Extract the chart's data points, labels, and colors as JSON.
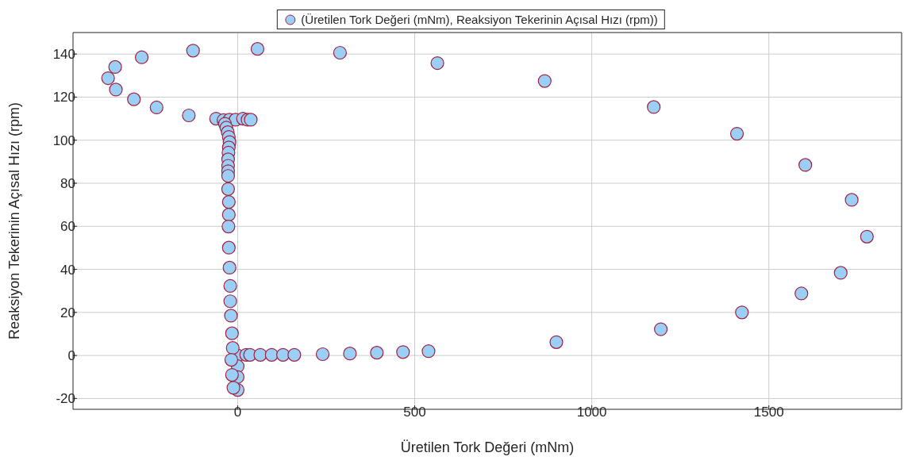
{
  "chart_data": {
    "type": "scatter",
    "xlabel": "Üretilen Tork Değeri (mNm)",
    "ylabel": "Reaksiyon Tekerinin Açısal Hızı (rpm)",
    "xlim": [
      -465,
      1875
    ],
    "ylim": [
      -25,
      150
    ],
    "xticks": [
      0,
      500,
      1000,
      1500
    ],
    "yticks": [
      -20,
      0,
      20,
      40,
      60,
      80,
      100,
      120,
      140
    ],
    "grid": true,
    "legend": "top",
    "marker": "circle",
    "series": [
      {
        "name": "(Üretilen Tork Değeri (mNm), Reaksiyon Tekerinin Açısal Hızı (rpm))",
        "color": "#9ccff5",
        "x": [
          0,
          0,
          0,
          0,
          24,
          35,
          64,
          96,
          128,
          160,
          240,
          317,
          393,
          467,
          539,
          900,
          1195,
          1424,
          1592,
          1703,
          1777,
          1734,
          1603,
          1410,
          1175,
          867,
          564,
          289,
          56,
          -126,
          -271,
          -346,
          -366,
          -344,
          -293,
          -229,
          -138,
          -61,
          -40,
          -23,
          -6,
          15,
          28,
          37,
          -36,
          -32,
          -28,
          -25,
          -23,
          -25,
          -26,
          -27,
          -27,
          -27,
          -27,
          -27,
          -25,
          -25,
          -26,
          -25,
          -23,
          -21,
          -21,
          -19,
          -16,
          -14,
          -18,
          -16,
          -12
        ],
        "values": [
          0,
          -5,
          -10,
          -16,
          0.3,
          0.3,
          0.3,
          0.3,
          0.3,
          0.3,
          0.6,
          0.9,
          1.3,
          1.6,
          2,
          6.2,
          12.2,
          20,
          28.8,
          38.4,
          55.2,
          72.3,
          88.5,
          103,
          115.4,
          127.5,
          135.8,
          140.6,
          142.4,
          141.6,
          138.5,
          134,
          128.8,
          123.5,
          119,
          115.2,
          111.5,
          110,
          109.3,
          109.5,
          109.5,
          110,
          109.5,
          109.5,
          107.6,
          105.8,
          103.7,
          101.5,
          99.1,
          96.6,
          94.2,
          91.1,
          88.1,
          85.6,
          83.4,
          77.3,
          71.3,
          65.4,
          59.9,
          50.1,
          40.8,
          32.3,
          25.2,
          18.5,
          10.3,
          3.5,
          -2,
          -9,
          -15
        ]
      }
    ]
  }
}
